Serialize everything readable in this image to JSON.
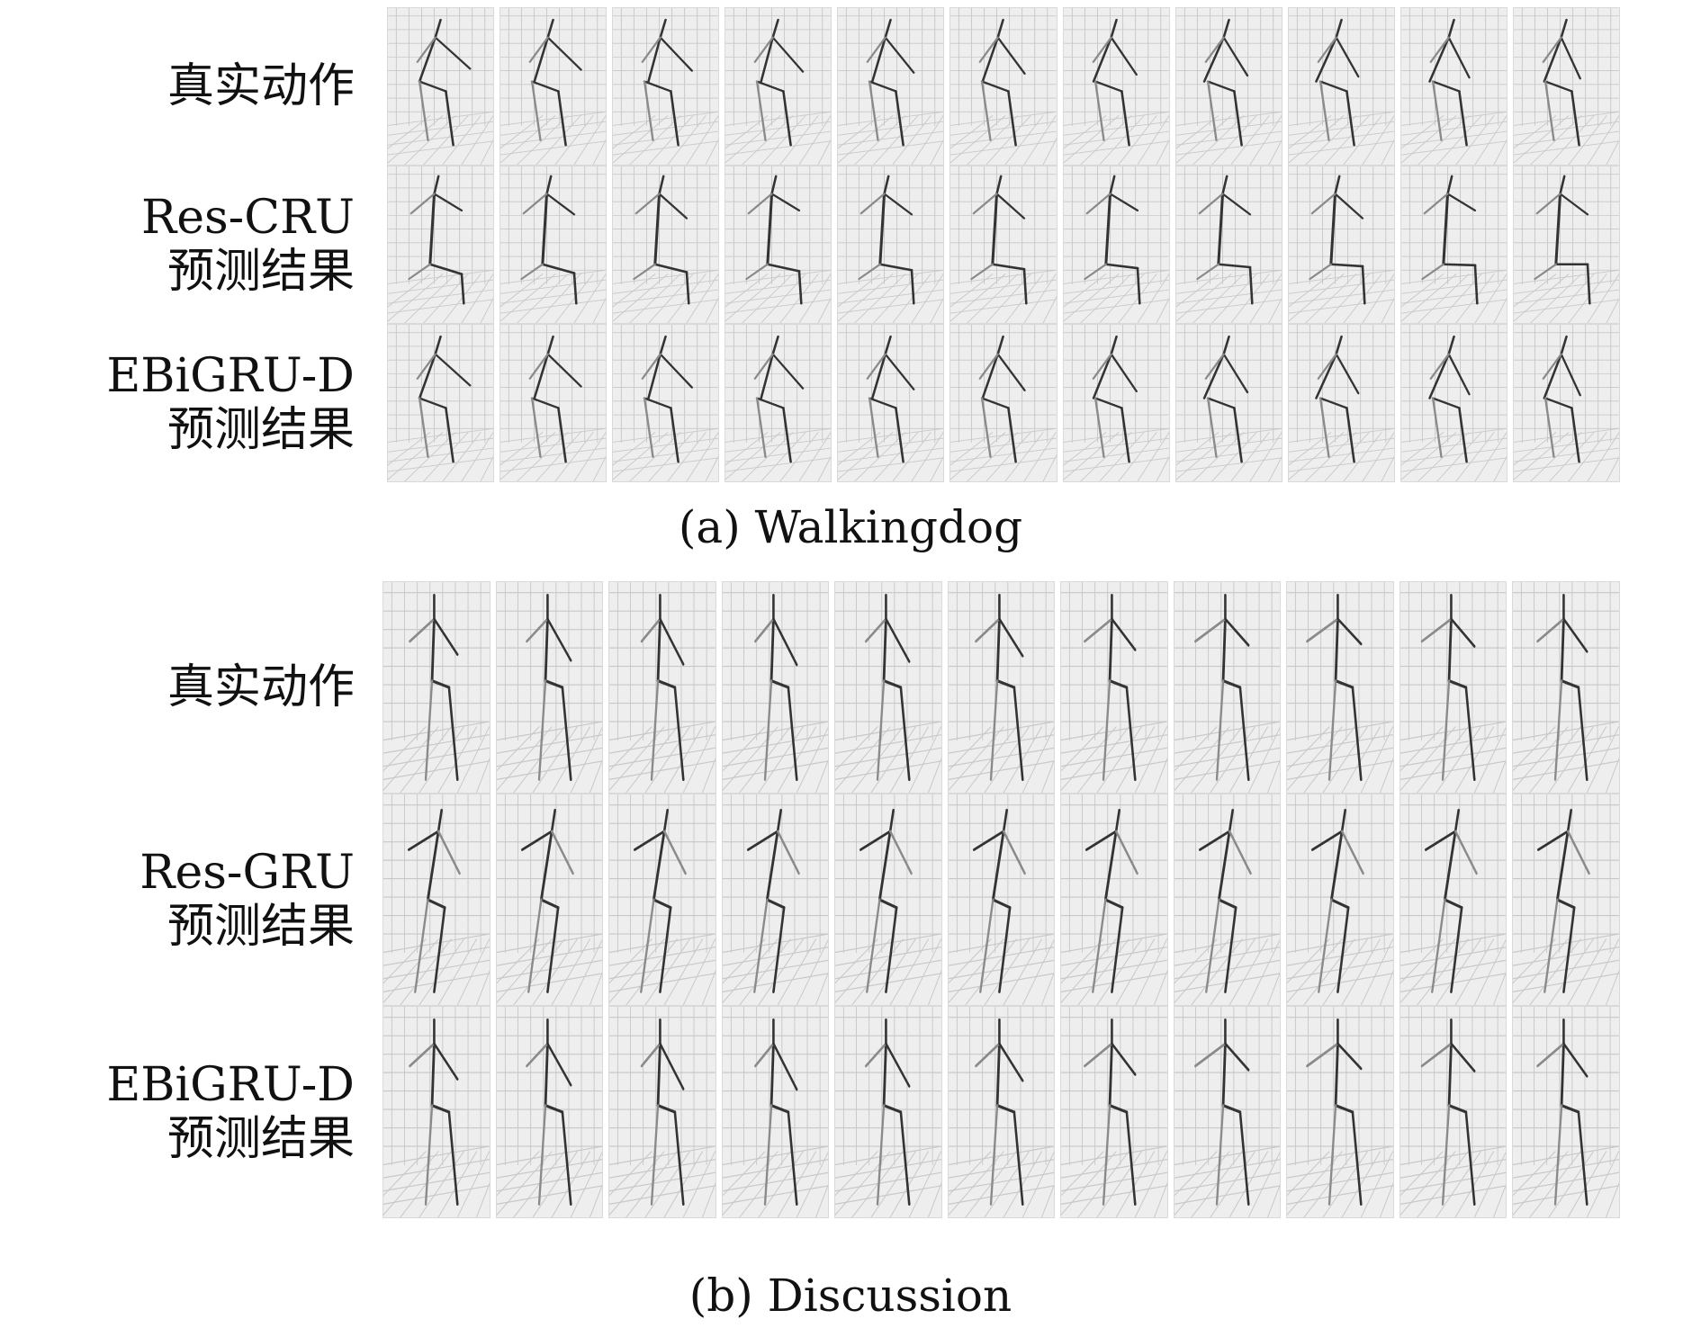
{
  "panels": [
    {
      "caption": "(a) Walkingdog",
      "rows": [
        {
          "label_lines": [
            "真实动作"
          ],
          "frames": 11,
          "pose": "walkingdog"
        },
        {
          "label_lines": [
            "Res-CRU",
            "预测结果"
          ],
          "frames": 11,
          "pose": "collapse"
        },
        {
          "label_lines": [
            "EBiGRU-D",
            "预测结果"
          ],
          "frames": 11,
          "pose": "walkingdog"
        }
      ]
    },
    {
      "caption": "(b) Discussion",
      "rows": [
        {
          "label_lines": [
            "真实动作"
          ],
          "frames": 11,
          "pose": "discussion"
        },
        {
          "label_lines": [
            "Res-GRU",
            "预测结果"
          ],
          "frames": 11,
          "pose": "lean"
        },
        {
          "label_lines": [
            "EBiGRU-D",
            "预测结果"
          ],
          "frames": 11,
          "pose": "discussion"
        }
      ]
    }
  ],
  "colors": {
    "grid": "#c8c8c8",
    "skeleton_dark": "#333333",
    "skeleton_light": "#8a8a8a",
    "frame_bg": "#eeeeee"
  }
}
